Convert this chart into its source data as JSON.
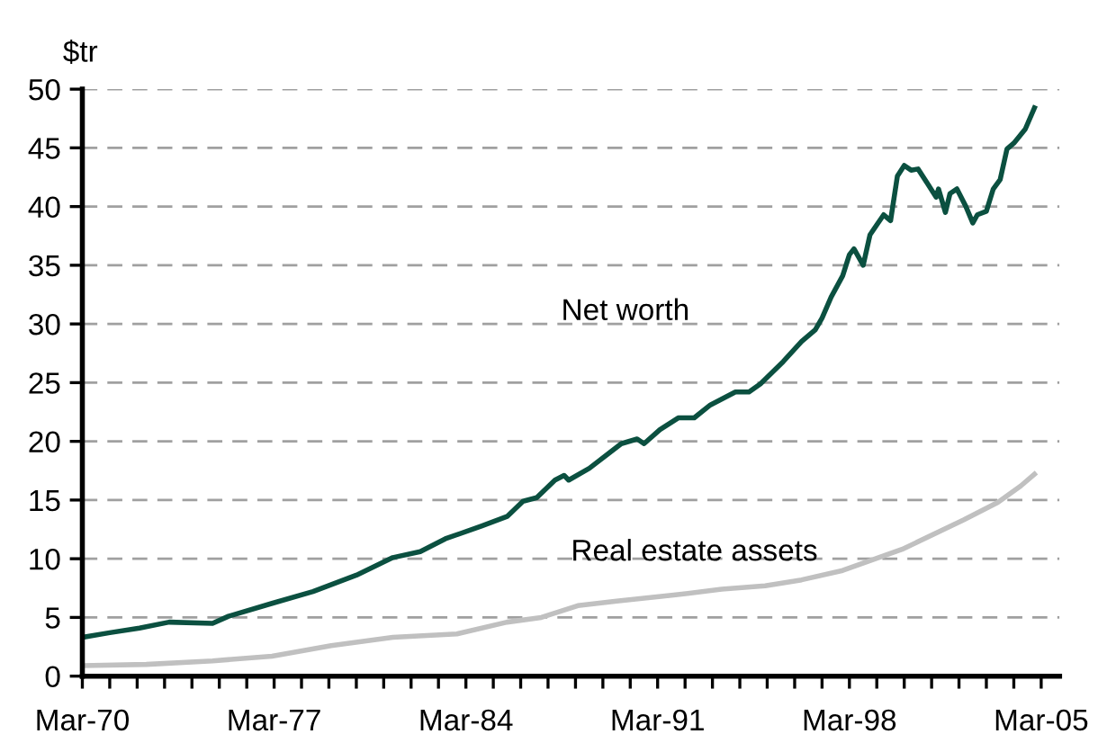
{
  "chart_data": {
    "type": "line",
    "ylabel": "$tr",
    "x": [
      "1970-03",
      "1971-03",
      "1972-04",
      "1973-05",
      "1974-12",
      "1975-07",
      "1977-02",
      "1978-08",
      "1980-03",
      "1981-07",
      "1982-07",
      "1983-06",
      "1984-10",
      "1985-09",
      "1986-04",
      "1986-10",
      "1987-06",
      "1987-10",
      "1987-12",
      "1988-09",
      "1989-11",
      "1990-06",
      "1990-09",
      "1991-04",
      "1991-12",
      "1992-07",
      "1993-02",
      "1994-01",
      "1994-07",
      "1994-12",
      "1995-10",
      "1996-06",
      "1996-12",
      "1997-03",
      "1997-07",
      "1997-12",
      "1998-03",
      "1998-05",
      "1998-09",
      "1998-12",
      "1999-06",
      "1999-09",
      "1999-12",
      "2000-03",
      "2000-06",
      "2000-09",
      "2001-01",
      "2001-05",
      "2001-06",
      "2001-09",
      "2001-11",
      "2002-02",
      "2002-06",
      "2002-09",
      "2002-11",
      "2003-03",
      "2003-06",
      "2003-09",
      "2003-12",
      "2004-03",
      "2004-08",
      "2004-12"
    ],
    "series": [
      {
        "name": "Net worth",
        "color": "#0b5040",
        "values": [
          3.3,
          3.7,
          4.1,
          4.6,
          4.5,
          5.1,
          6.2,
          7.2,
          8.6,
          10.1,
          10.6,
          11.7,
          12.8,
          13.6,
          14.9,
          15.2,
          16.7,
          17.1,
          16.7,
          17.7,
          19.8,
          20.2,
          19.8,
          21.0,
          22.0,
          22.0,
          23.1,
          24.2,
          24.2,
          24.9,
          26.8,
          28.5,
          29.5,
          30.5,
          32.3,
          34.1,
          35.9,
          36.4,
          35.0,
          37.6,
          39.3,
          38.8,
          42.6,
          43.5,
          43.1,
          43.2,
          42.0,
          40.8,
          41.5,
          39.5,
          41.1,
          41.5,
          40.0,
          38.6,
          39.3,
          39.6,
          41.5,
          42.3,
          44.9,
          45.4,
          46.6,
          48.4
        ]
      },
      {
        "name": "Real estate assets",
        "color": "#c0c0c0",
        "x": [
          "1970-03",
          "1972-07",
          "1974-12",
          "1977-02",
          "1979-04",
          "1981-07",
          "1983-11",
          "1985-09",
          "1986-12",
          "1988-04",
          "1989-09",
          "1991-10",
          "1993-07",
          "1995-02",
          "1996-06",
          "1997-12",
          "2000-02",
          "2002-05",
          "2003-08",
          "2004-06",
          "2004-12"
        ],
        "values": [
          0.9,
          1.0,
          1.3,
          1.7,
          2.6,
          3.3,
          3.6,
          4.6,
          5.0,
          6.0,
          6.4,
          6.9,
          7.4,
          7.7,
          8.2,
          9.0,
          10.8,
          13.3,
          14.8,
          16.2,
          17.2
        ]
      }
    ],
    "xlim": [
      "1970-03",
      "2005-11"
    ],
    "xticks": [
      {
        "value": "1970-03",
        "label": "Mar-70"
      },
      {
        "value": "1971-03",
        "label": null
      },
      {
        "value": "1972-03",
        "label": null
      },
      {
        "value": "1973-03",
        "label": null
      },
      {
        "value": "1974-03",
        "label": null
      },
      {
        "value": "1975-03",
        "label": null
      },
      {
        "value": "1976-03",
        "label": null
      },
      {
        "value": "1977-03",
        "label": "Mar-77"
      },
      {
        "value": "1978-03",
        "label": null
      },
      {
        "value": "1979-03",
        "label": null
      },
      {
        "value": "1980-03",
        "label": null
      },
      {
        "value": "1981-03",
        "label": null
      },
      {
        "value": "1982-03",
        "label": null
      },
      {
        "value": "1983-03",
        "label": null
      },
      {
        "value": "1984-03",
        "label": "Mar-84"
      },
      {
        "value": "1985-03",
        "label": null
      },
      {
        "value": "1986-03",
        "label": null
      },
      {
        "value": "1987-03",
        "label": null
      },
      {
        "value": "1988-03",
        "label": null
      },
      {
        "value": "1989-03",
        "label": null
      },
      {
        "value": "1990-03",
        "label": null
      },
      {
        "value": "1991-03",
        "label": "Mar-91"
      },
      {
        "value": "1992-03",
        "label": null
      },
      {
        "value": "1993-03",
        "label": null
      },
      {
        "value": "1994-03",
        "label": null
      },
      {
        "value": "1995-03",
        "label": null
      },
      {
        "value": "1996-03",
        "label": null
      },
      {
        "value": "1997-03",
        "label": null
      },
      {
        "value": "1998-03",
        "label": "Mar-98"
      },
      {
        "value": "1999-03",
        "label": null
      },
      {
        "value": "2000-03",
        "label": null
      },
      {
        "value": "2001-03",
        "label": null
      },
      {
        "value": "2002-03",
        "label": null
      },
      {
        "value": "2003-03",
        "label": null
      },
      {
        "value": "2004-03",
        "label": null
      },
      {
        "value": "2005-03",
        "label": "Mar-05"
      }
    ],
    "ylim": [
      0,
      50
    ],
    "yticks": [
      0,
      5,
      10,
      15,
      20,
      25,
      30,
      35,
      40,
      45,
      50
    ],
    "grid": "y",
    "legend": false,
    "marker": "none",
    "line_style": "solid"
  }
}
